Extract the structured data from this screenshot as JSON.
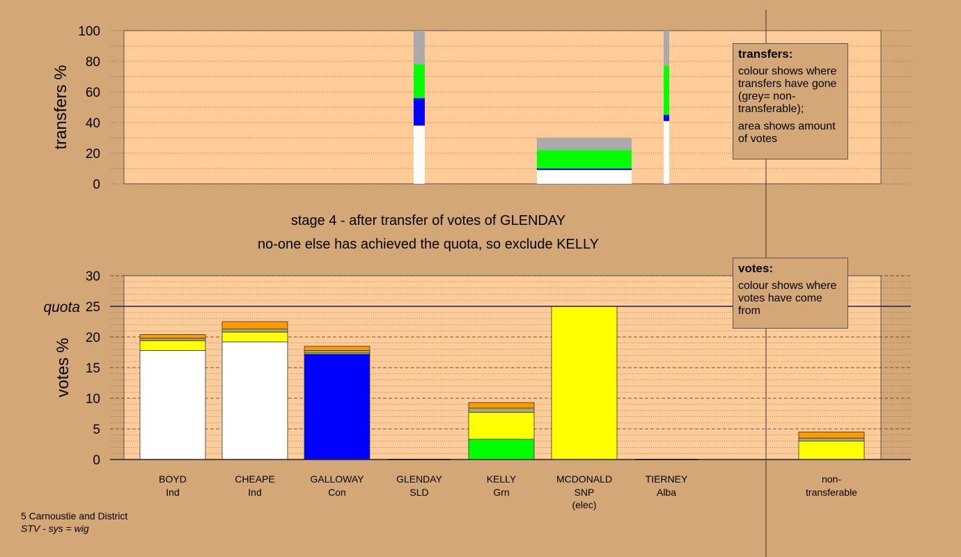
{
  "chart_data": [
    {
      "id": "transfers",
      "type": "bar",
      "stacked": true,
      "ylabel": "transfers %",
      "ylim": [
        0,
        100
      ],
      "yticks": [
        0,
        20,
        40,
        60,
        80,
        100
      ],
      "categories": [
        "BOYD",
        "CHEAPE",
        "GALLOWAY",
        "GLENDAY",
        "KELLY",
        "MCDONALD",
        "TIERNEY",
        "non-transferable"
      ],
      "bars": [
        {
          "category": "GLENDAY",
          "width_share": "narrow",
          "segments": [
            {
              "color": "#ffffff",
              "from": 0,
              "to": 38
            },
            {
              "color": "#0000ff",
              "from": 38,
              "to": 56
            },
            {
              "color": "#00ff00",
              "from": 56,
              "to": 78
            },
            {
              "color": "#aaaaaa",
              "from": 78,
              "to": 100
            }
          ]
        },
        {
          "category": "MCDONALD",
          "width_share": "wide",
          "segments": [
            {
              "color": "#ffffff",
              "from": 0,
              "to": 9
            },
            {
              "color": "#0000ff",
              "from": 9,
              "to": 10
            },
            {
              "color": "#00ff00",
              "from": 10,
              "to": 22
            },
            {
              "color": "#aaaaaa",
              "from": 22,
              "to": 30
            }
          ]
        },
        {
          "category": "TIERNEY",
          "width_share": "very-narrow",
          "segments": [
            {
              "color": "#ffffff",
              "from": 0,
              "to": 41
            },
            {
              "color": "#0000ff",
              "from": 41,
              "to": 45
            },
            {
              "color": "#00ff00",
              "from": 45,
              "to": 77
            },
            {
              "color": "#aaaaaa",
              "from": 77,
              "to": 100
            }
          ]
        }
      ]
    },
    {
      "id": "votes",
      "type": "bar",
      "stacked": true,
      "ylabel": "votes %",
      "ylim": [
        0,
        30
      ],
      "yticks": [
        0,
        5,
        10,
        15,
        20,
        25,
        30
      ],
      "quota": 25,
      "quota_label": "quota",
      "categories": [
        "BOYD",
        "CHEAPE",
        "GALLOWAY",
        "GLENDAY",
        "KELLY",
        "MCDONALD",
        "TIERNEY",
        "non-transferable"
      ],
      "bars": [
        {
          "category": "BOYD",
          "segments": [
            {
              "color": "#ffffff",
              "value": 17.8
            },
            {
              "color": "#ffff00",
              "value": 1.6
            },
            {
              "color": "#a8a870",
              "value": 0.4
            },
            {
              "color": "#ff9900",
              "value": 0.6
            }
          ]
        },
        {
          "category": "CHEAPE",
          "segments": [
            {
              "color": "#ffffff",
              "value": 19.2
            },
            {
              "color": "#ffff00",
              "value": 1.6
            },
            {
              "color": "#a8a870",
              "value": 0.5
            },
            {
              "color": "#ff9900",
              "value": 1.2
            }
          ]
        },
        {
          "category": "GALLOWAY",
          "segments": [
            {
              "color": "#0000ff",
              "value": 17.2
            },
            {
              "color": "#ffff00",
              "value": 0.2
            },
            {
              "color": "#a8a870",
              "value": 0.4
            },
            {
              "color": "#ff9900",
              "value": 0.7
            }
          ]
        },
        {
          "category": "GLENDAY",
          "segments": []
        },
        {
          "category": "KELLY",
          "segments": [
            {
              "color": "#00ff00",
              "value": 3.3
            },
            {
              "color": "#ffff00",
              "value": 4.4
            },
            {
              "color": "#a8a870",
              "value": 0.7
            },
            {
              "color": "#ff9900",
              "value": 0.9
            }
          ]
        },
        {
          "category": "MCDONALD",
          "segments": [
            {
              "color": "#ffff00",
              "value": 25
            }
          ]
        },
        {
          "category": "TIERNEY",
          "segments": []
        },
        {
          "category": "non-transferable",
          "segments": [
            {
              "color": "#ffff00",
              "value": 3.0
            },
            {
              "color": "#a8a870",
              "value": 0.5
            },
            {
              "color": "#ff9900",
              "value": 1.0
            }
          ]
        }
      ],
      "candidates": [
        {
          "name": "BOYD",
          "party": "Ind",
          "note": ""
        },
        {
          "name": "CHEAPE",
          "party": "Ind",
          "note": ""
        },
        {
          "name": "GALLOWAY",
          "party": "Con",
          "note": ""
        },
        {
          "name": "GLENDAY",
          "party": "SLD",
          "note": ""
        },
        {
          "name": "KELLY",
          "party": "Grn",
          "note": ""
        },
        {
          "name": "MCDONALD",
          "party": "SNP",
          "note": "(elec)"
        },
        {
          "name": "TIERNEY",
          "party": "Alba",
          "note": ""
        },
        {
          "name": "non-",
          "party": "transferable",
          "note": ""
        }
      ]
    }
  ],
  "stage_text": {
    "line1": "stage 4 - after transfer of votes of GLENDAY",
    "line2": "no-one else has achieved the quota, so exclude KELLY"
  },
  "legend_transfers": {
    "title": "transfers:",
    "line1": "colour shows where transfers have gone (grey= non-transferable);",
    "line2": "area shows amount of votes"
  },
  "legend_votes": {
    "title": "votes:",
    "line1": "colour shows where votes have come from"
  },
  "footer": {
    "ward": "5 Carnoustie and District",
    "system": "STV - sys = wig"
  }
}
